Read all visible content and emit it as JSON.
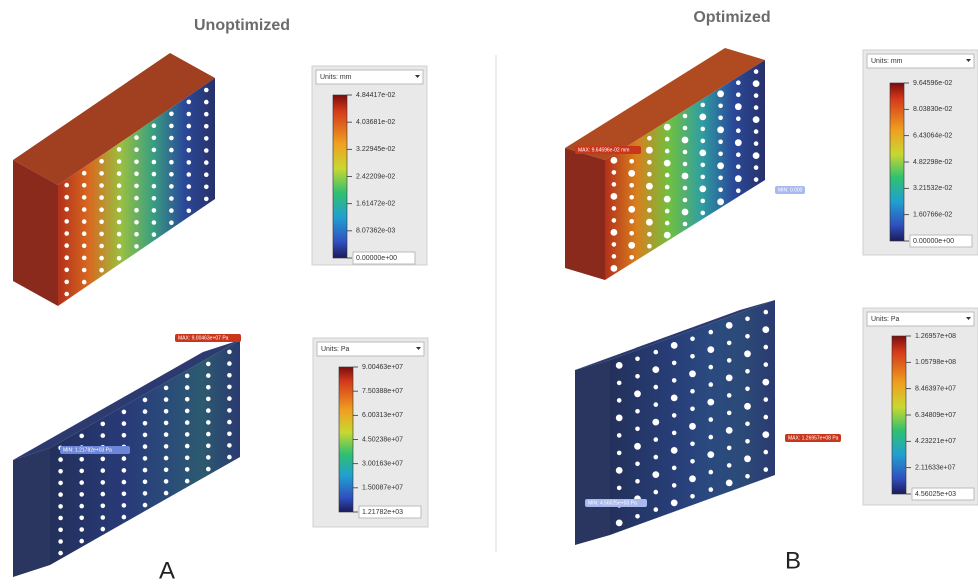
{
  "panel_a": {
    "label": "A",
    "title": "Unoptimized",
    "displacement": {
      "units": "Units: mm",
      "scale": [
        "4.84417e-02",
        "4.03681e-02",
        "3.22945e-02",
        "2.42209e-02",
        "1.61472e-02",
        "8.07362e-03",
        "0.00000e+00"
      ]
    },
    "stress": {
      "units": "Units: Pa",
      "scale": [
        "9.00463e+07",
        "7.50388e+07",
        "6.00313e+07",
        "4.50238e+07",
        "3.00163e+07",
        "1.50087e+07",
        "1.21782e+03"
      ],
      "max_tag": "MAX: 9.00463e+07 Pa",
      "min_tag": "MIN: 1.21782e+03 Pa"
    }
  },
  "panel_b": {
    "label": "B",
    "title": "Optimized",
    "displacement": {
      "units": "Units: mm",
      "scale": [
        "9.64596e-02",
        "8.03830e-02",
        "6.43064e-02",
        "4.82298e-02",
        "3.21532e-02",
        "1.60766e-02",
        "0.00000e+00"
      ],
      "max_tag": "MAX: 9.64596e-02 mm",
      "min_tag": "MIN: 0.000"
    },
    "stress": {
      "units": "Units: Pa",
      "scale": [
        "1.26957e+08",
        "1.05798e+08",
        "8.46397e+07",
        "6.34809e+07",
        "4.23221e+07",
        "2.11633e+07",
        "4.56025e+03"
      ],
      "max_tag": "MAX: 1.26957e+08 Pa",
      "min_tag": "MIN: 4.56025e+03 Pa"
    }
  }
}
